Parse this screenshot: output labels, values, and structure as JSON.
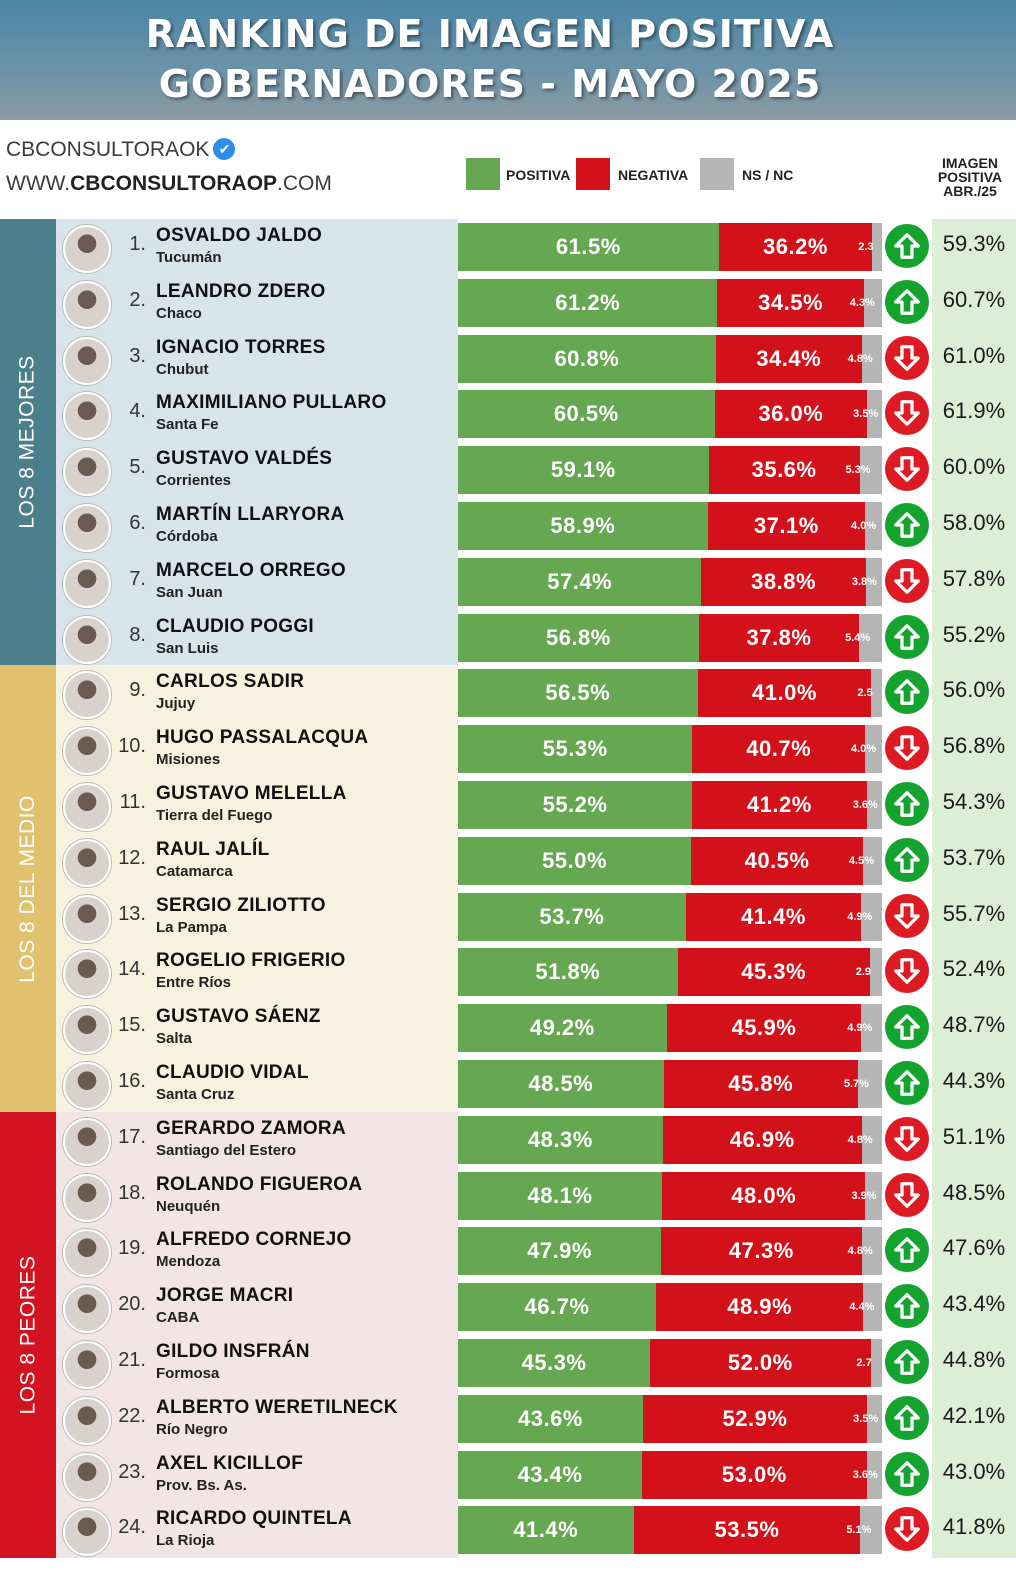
{
  "header": {
    "title_line1": "RANKING DE IMAGEN POSITIVA",
    "title_line2": "GOBERNADORES - MAYO 2025"
  },
  "brand": {
    "name": "CBCONSULTORAOK",
    "verified_icon": "verified-badge-icon",
    "site_prefix": "WWW.",
    "site_bold": "CBCONSULTORAOP",
    "site_suffix": ".COM"
  },
  "legend": [
    {
      "label": "POSITIVA",
      "color": "#66a851"
    },
    {
      "label": "NEGATIVA",
      "color": "#d3111b"
    },
    {
      "label": "NS / NC",
      "color": "#b5b5b5"
    }
  ],
  "previous_header": [
    "IMAGEN",
    "POSITIVA",
    "ABR./25"
  ],
  "groups": [
    {
      "label": "LOS 8 MEJORES",
      "color": "#4a7f8b",
      "bg": "#d7e5ea"
    },
    {
      "label": "LOS 8 DEL MEDIO",
      "color": "#e1c16e",
      "bg": "#f6f2df"
    },
    {
      "label": "LOS 8 PEORES",
      "color": "#d3131f",
      "bg": "#f3e4e5"
    }
  ],
  "trend_icons": {
    "up": "arrow-up-icon",
    "down": "arrow-down-icon"
  },
  "chart_data": {
    "type": "bar",
    "orientation": "horizontal-stacked",
    "title": "RANKING DE IMAGEN POSITIVA GOBERNADORES - MAYO 2025",
    "series": [
      {
        "name": "POSITIVA",
        "color": "#66a851"
      },
      {
        "name": "NEGATIVA",
        "color": "#d3111b"
      },
      {
        "name": "NS / NC",
        "color": "#b5b5b5"
      }
    ],
    "rows": [
      {
        "rank": "1.",
        "name": "OSVALDO JALDO",
        "province": "Tucumán",
        "pos": 61.5,
        "neg": 36.2,
        "ns": 2.3,
        "pos_label": "61.5%",
        "neg_label": "36.2%",
        "ns_label": "2.3",
        "trend": "up",
        "prev": "59.3%"
      },
      {
        "rank": "2.",
        "name": "LEANDRO ZDERO",
        "province": "Chaco",
        "pos": 61.2,
        "neg": 34.5,
        "ns": 4.3,
        "pos_label": "61.2%",
        "neg_label": "34.5%",
        "ns_label": "4.3%",
        "trend": "up",
        "prev": "60.7%"
      },
      {
        "rank": "3.",
        "name": "IGNACIO TORRES",
        "province": "Chubut",
        "pos": 60.8,
        "neg": 34.4,
        "ns": 4.8,
        "pos_label": "60.8%",
        "neg_label": "34.4%",
        "ns_label": "4.8%",
        "trend": "down",
        "prev": "61.0%"
      },
      {
        "rank": "4.",
        "name": "MAXIMILIANO PULLARO",
        "province": "Santa Fe",
        "pos": 60.5,
        "neg": 36.0,
        "ns": 3.5,
        "pos_label": "60.5%",
        "neg_label": "36.0%",
        "ns_label": "3.5%",
        "trend": "down",
        "prev": "61.9%"
      },
      {
        "rank": "5.",
        "name": "GUSTAVO VALDÉS",
        "province": "Corrientes",
        "pos": 59.1,
        "neg": 35.6,
        "ns": 5.3,
        "pos_label": "59.1%",
        "neg_label": "35.6%",
        "ns_label": "5.3%",
        "trend": "down",
        "prev": "60.0%"
      },
      {
        "rank": "6.",
        "name": "MARTÍN LLARYORA",
        "province": "Córdoba",
        "pos": 58.9,
        "neg": 37.1,
        "ns": 4.0,
        "pos_label": "58.9%",
        "neg_label": "37.1%",
        "ns_label": "4.0%",
        "trend": "up",
        "prev": "58.0%"
      },
      {
        "rank": "7.",
        "name": "MARCELO ORREGO",
        "province": "San Juan",
        "pos": 57.4,
        "neg": 38.8,
        "ns": 3.8,
        "pos_label": "57.4%",
        "neg_label": "38.8%",
        "ns_label": "3.8%",
        "trend": "down",
        "prev": "57.8%"
      },
      {
        "rank": "8.",
        "name": "CLAUDIO POGGI",
        "province": "San Luis",
        "pos": 56.8,
        "neg": 37.8,
        "ns": 5.4,
        "pos_label": "56.8%",
        "neg_label": "37.8%",
        "ns_label": "5.4%",
        "trend": "up",
        "prev": "55.2%"
      },
      {
        "rank": "9.",
        "name": "CARLOS SADIR",
        "province": "Jujuy",
        "pos": 56.5,
        "neg": 41.0,
        "ns": 2.5,
        "pos_label": "56.5%",
        "neg_label": "41.0%",
        "ns_label": "2.5",
        "trend": "up",
        "prev": "56.0%"
      },
      {
        "rank": "10.",
        "name": "HUGO PASSALACQUA",
        "province": "Misiones",
        "pos": 55.3,
        "neg": 40.7,
        "ns": 4.0,
        "pos_label": "55.3%",
        "neg_label": "40.7%",
        "ns_label": "4.0%",
        "trend": "down",
        "prev": "56.8%"
      },
      {
        "rank": "11.",
        "name": "GUSTAVO MELELLA",
        "province": "Tierra del Fuego",
        "pos": 55.2,
        "neg": 41.2,
        "ns": 3.6,
        "pos_label": "55.2%",
        "neg_label": "41.2%",
        "ns_label": "3.6%",
        "trend": "up",
        "prev": "54.3%"
      },
      {
        "rank": "12.",
        "name": "RAUL JALÍL",
        "province": "Catamarca",
        "pos": 55.0,
        "neg": 40.5,
        "ns": 4.5,
        "pos_label": "55.0%",
        "neg_label": "40.5%",
        "ns_label": "4.5%",
        "trend": "up",
        "prev": "53.7%"
      },
      {
        "rank": "13.",
        "name": "SERGIO ZILIOTTO",
        "province": "La Pampa",
        "pos": 53.7,
        "neg": 41.4,
        "ns": 4.9,
        "pos_label": "53.7%",
        "neg_label": "41.4%",
        "ns_label": "4.9%",
        "trend": "down",
        "prev": "55.7%"
      },
      {
        "rank": "14.",
        "name": "ROGELIO FRIGERIO",
        "province": "Entre Ríos",
        "pos": 51.8,
        "neg": 45.3,
        "ns": 2.9,
        "pos_label": "51.8%",
        "neg_label": "45.3%",
        "ns_label": "2.9",
        "trend": "down",
        "prev": "52.4%"
      },
      {
        "rank": "15.",
        "name": "GUSTAVO SÁENZ",
        "province": "Salta",
        "pos": 49.2,
        "neg": 45.9,
        "ns": 4.9,
        "pos_label": "49.2%",
        "neg_label": "45.9%",
        "ns_label": "4.9%",
        "trend": "up",
        "prev": "48.7%"
      },
      {
        "rank": "16.",
        "name": "CLAUDIO VIDAL",
        "province": "Santa Cruz",
        "pos": 48.5,
        "neg": 45.8,
        "ns": 5.7,
        "pos_label": "48.5%",
        "neg_label": "45.8%",
        "ns_label": "5.7%",
        "trend": "up",
        "prev": "44.3%"
      },
      {
        "rank": "17.",
        "name": "GERARDO ZAMORA",
        "province": "Santiago del Estero",
        "pos": 48.3,
        "neg": 46.9,
        "ns": 4.8,
        "pos_label": "48.3%",
        "neg_label": "46.9%",
        "ns_label": "4.8%",
        "trend": "down",
        "prev": "51.1%"
      },
      {
        "rank": "18.",
        "name": "ROLANDO FIGUEROA",
        "province": "Neuquén",
        "pos": 48.1,
        "neg": 48.0,
        "ns": 3.9,
        "pos_label": "48.1%",
        "neg_label": "48.0%",
        "ns_label": "3.9%",
        "trend": "down",
        "prev": "48.5%"
      },
      {
        "rank": "19.",
        "name": "ALFREDO CORNEJO",
        "province": "Mendoza",
        "pos": 47.9,
        "neg": 47.3,
        "ns": 4.8,
        "pos_label": "47.9%",
        "neg_label": "47.3%",
        "ns_label": "4.8%",
        "trend": "up",
        "prev": "47.6%"
      },
      {
        "rank": "20.",
        "name": "JORGE MACRI",
        "province": "CABA",
        "pos": 46.7,
        "neg": 48.9,
        "ns": 4.4,
        "pos_label": "46.7%",
        "neg_label": "48.9%",
        "ns_label": "4.4%",
        "trend": "up",
        "prev": "43.4%"
      },
      {
        "rank": "21.",
        "name": "GILDO INSFRÁN",
        "province": "Formosa",
        "pos": 45.3,
        "neg": 52.0,
        "ns": 2.7,
        "pos_label": "45.3%",
        "neg_label": "52.0%",
        "ns_label": "2.7",
        "trend": "up",
        "prev": "44.8%"
      },
      {
        "rank": "22.",
        "name": "ALBERTO WERETILNECK",
        "province": "Río Negro",
        "pos": 43.6,
        "neg": 52.9,
        "ns": 3.5,
        "pos_label": "43.6%",
        "neg_label": "52.9%",
        "ns_label": "3.5%",
        "trend": "up",
        "prev": "42.1%"
      },
      {
        "rank": "23.",
        "name": "AXEL KICILLOF",
        "province": "Prov. Bs. As.",
        "pos": 43.4,
        "neg": 53.0,
        "ns": 3.6,
        "pos_label": "43.4%",
        "neg_label": "53.0%",
        "ns_label": "3.6%",
        "trend": "up",
        "prev": "43.0%"
      },
      {
        "rank": "24.",
        "name": "RICARDO QUINTELA",
        "province": "La Rioja",
        "pos": 41.4,
        "neg": 53.5,
        "ns": 5.1,
        "pos_label": "41.4%",
        "neg_label": "53.5%",
        "ns_label": "5.1%",
        "trend": "down",
        "prev": "41.8%"
      }
    ]
  }
}
